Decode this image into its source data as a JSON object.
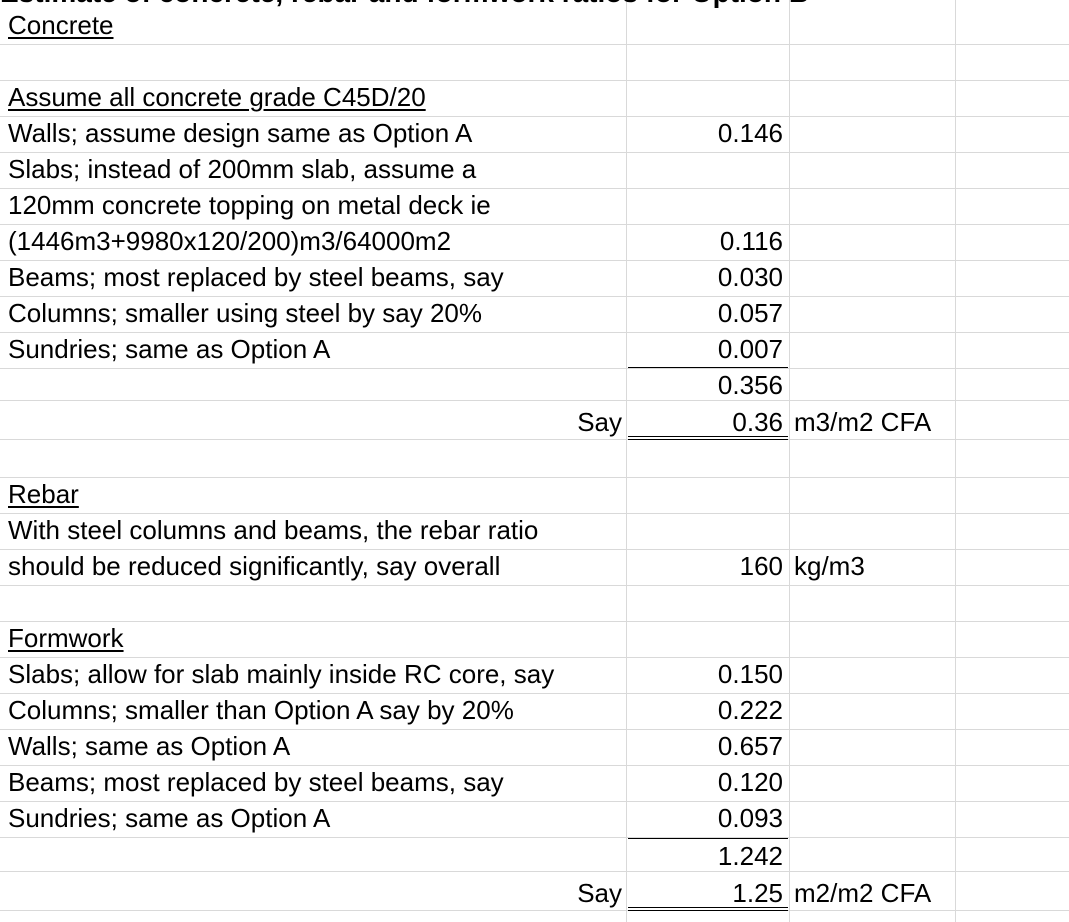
{
  "header_cut": "Estimate of concrete, rebar and formwork ratios for Option B",
  "rows": [
    {
      "a": "Concrete",
      "b": "",
      "c": ""
    },
    {
      "a": "",
      "b": "",
      "c": ""
    },
    {
      "a": "Assume all concrete grade C45D/20",
      "b": "",
      "c": ""
    },
    {
      "a": "Walls; assume design same as Option A",
      "b": "0.146",
      "c": ""
    },
    {
      "a": "Slabs; instead of 200mm slab, assume a",
      "b": "",
      "c": ""
    },
    {
      "a": "120mm concrete topping on metal deck ie",
      "b": "",
      "c": ""
    },
    {
      "a": "(1446m3+9980x120/200)m3/64000m2",
      "b": "0.116",
      "c": ""
    },
    {
      "a": "Beams; most replaced by steel beams, say",
      "b": "0.030",
      "c": ""
    },
    {
      "a": "Columns; smaller using steel by say 20%",
      "b": "0.057",
      "c": ""
    },
    {
      "a": "Sundries; same as Option A",
      "b": "0.007",
      "c": ""
    },
    {
      "a": "",
      "b": "0.356",
      "c": ""
    },
    {
      "a": "Say",
      "b": "0.36",
      "c": "m3/m2 CFA"
    },
    {
      "a": "",
      "b": "",
      "c": ""
    },
    {
      "a": "Rebar",
      "b": "",
      "c": ""
    },
    {
      "a": "With steel columns and beams, the rebar ratio",
      "b": "",
      "c": ""
    },
    {
      "a": "should be reduced significantly, say overall",
      "b": "160",
      "c": "kg/m3"
    },
    {
      "a": "",
      "b": "",
      "c": ""
    },
    {
      "a": "Formwork",
      "b": "",
      "c": ""
    },
    {
      "a": "Slabs; allow for slab mainly inside RC core, say",
      "b": "0.150",
      "c": ""
    },
    {
      "a": "Columns; smaller than Option A say by 20%",
      "b": "0.222",
      "c": ""
    },
    {
      "a": "Walls; same as Option A",
      "b": "0.657",
      "c": ""
    },
    {
      "a": "Beams; most replaced by steel beams, say",
      "b": "0.120",
      "c": ""
    },
    {
      "a": "Sundries; same as Option A",
      "b": "0.093",
      "c": ""
    },
    {
      "a": "",
      "b": "1.242",
      "c": ""
    },
    {
      "a": "Say",
      "b": "1.25",
      "c": "m2/m2 CFA"
    }
  ]
}
